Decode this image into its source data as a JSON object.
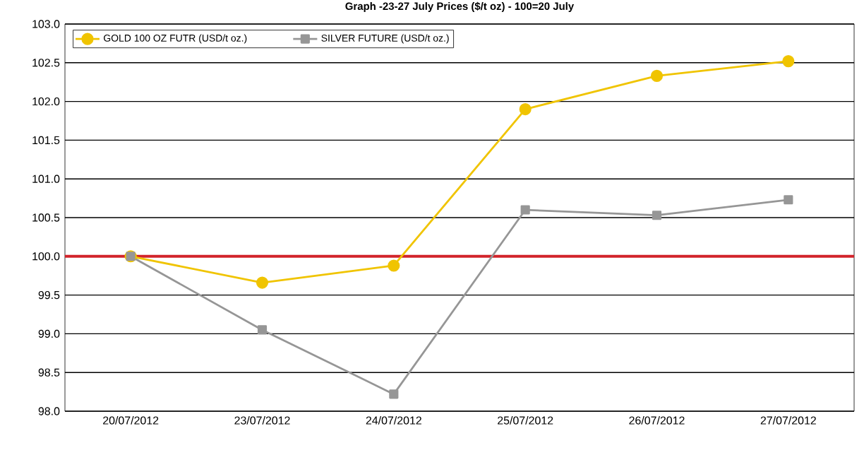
{
  "chart_data": {
    "type": "line",
    "title": "Graph -23-27 July Prices ($/t oz) - 100=20 July",
    "categories": [
      "20/07/2012",
      "23/07/2012",
      "24/07/2012",
      "25/07/2012",
      "26/07/2012",
      "27/07/2012"
    ],
    "series": [
      {
        "name": "GOLD 100 OZ FUTR (USD/t oz.)",
        "color": "#f0c400",
        "marker": "circle",
        "values": [
          100.0,
          99.66,
          99.88,
          101.9,
          102.33,
          102.52
        ]
      },
      {
        "name": "SILVER FUTURE (USD/t oz.)",
        "color": "#969696",
        "marker": "square",
        "values": [
          100.0,
          99.05,
          98.22,
          100.6,
          100.53,
          100.73
        ]
      }
    ],
    "ylim": [
      98.0,
      103.0
    ],
    "yticks": [
      {
        "value": 98.0,
        "label": "98.0"
      },
      {
        "value": 98.5,
        "label": "98.5"
      },
      {
        "value": 99.0,
        "label": "99.0"
      },
      {
        "value": 99.5,
        "label": "99.5"
      },
      {
        "value": 100.0,
        "label": "100.0"
      },
      {
        "value": 100.5,
        "label": "100.5"
      },
      {
        "value": 101.0,
        "label": "101.0"
      },
      {
        "value": 101.5,
        "label": "101.5"
      },
      {
        "value": 102.0,
        "label": "102.0"
      },
      {
        "value": 102.5,
        "label": "102.5"
      },
      {
        "value": 103.0,
        "label": "103.0"
      }
    ],
    "ref_lines": [
      {
        "axis": "y",
        "value": 100.0,
        "color": "#d2232a"
      }
    ],
    "grid": "y",
    "legend": "top left",
    "line_style": "solid"
  }
}
